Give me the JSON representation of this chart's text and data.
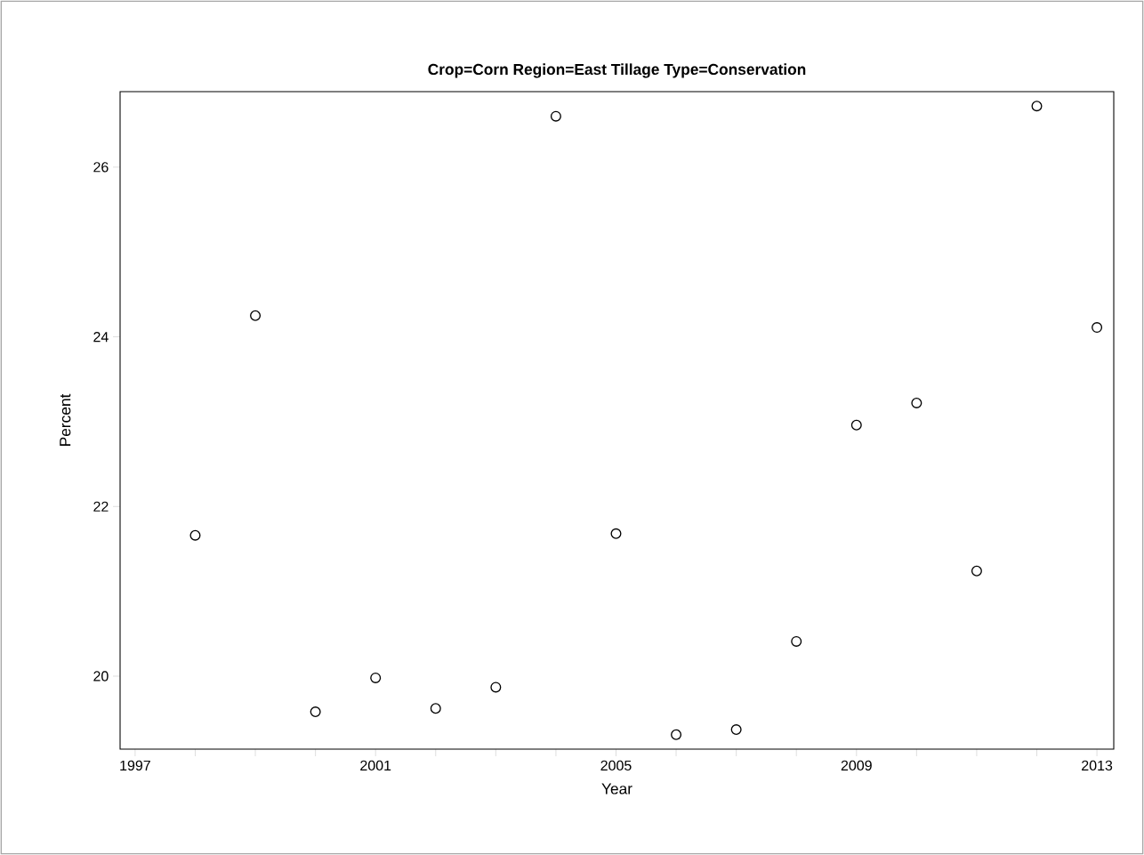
{
  "chart_data": {
    "type": "scatter",
    "title": "Crop=Corn Region=East Tillage Type=Conservation",
    "xlabel": "Year",
    "ylabel": "Percent",
    "x": [
      1998,
      1999,
      2000,
      2001,
      2002,
      2003,
      2004,
      2005,
      2006,
      2007,
      2008,
      2009,
      2010,
      2011,
      2012,
      2013
    ],
    "values": [
      21.66,
      24.25,
      19.58,
      19.98,
      19.62,
      19.87,
      26.6,
      21.68,
      19.31,
      19.37,
      20.41,
      22.96,
      23.22,
      21.24,
      26.72,
      24.11
    ],
    "color": "#000000",
    "marker": "circle",
    "xlim": [
      1996.75,
      2013.28
    ],
    "ylim": [
      19.14,
      26.89
    ],
    "xticks": [
      1997,
      {
        "value": 1998,
        "label": null
      },
      {
        "value": 1999,
        "label": null
      },
      {
        "value": 2000,
        "label": null
      },
      2001,
      {
        "value": 2002,
        "label": null
      },
      {
        "value": 2003,
        "label": null
      },
      {
        "value": 2004,
        "label": null
      },
      2005,
      {
        "value": 2006,
        "label": null
      },
      {
        "value": 2007,
        "label": null
      },
      {
        "value": 2008,
        "label": null
      },
      2009,
      {
        "value": 2010,
        "label": null
      },
      {
        "value": 2011,
        "label": null
      },
      {
        "value": 2012,
        "label": null
      },
      2013
    ],
    "yticks": [
      20,
      22,
      24,
      26
    ]
  }
}
